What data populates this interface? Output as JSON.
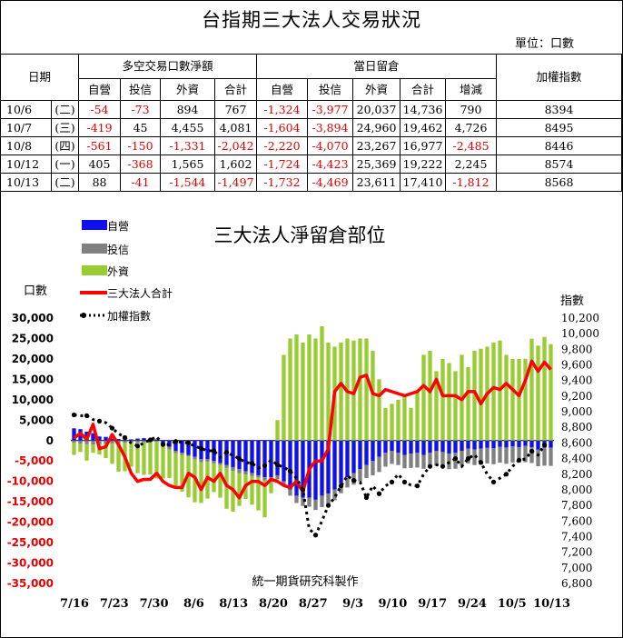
{
  "title": "台指期三大法人交易狀況",
  "unit_label": "單位：口數",
  "table": {
    "date_header": "日期",
    "group1": "多空交易口數淨額",
    "group2": "當日留倉",
    "index_header": "加權指數",
    "sub_headers": [
      "自營",
      "投信",
      "外資",
      "合計",
      "自營",
      "投信",
      "外資",
      "合計",
      "增減"
    ],
    "rows": [
      {
        "date": "10/6",
        "weekday": "(二)",
        "values": [
          "-54",
          "-73",
          "894",
          "767",
          "-1,324",
          "-3,977",
          "20,037",
          "14,736",
          "790"
        ],
        "index": "8394"
      },
      {
        "date": "10/7",
        "weekday": "(三)",
        "values": [
          "-419",
          "45",
          "4,455",
          "4,081",
          "-1,604",
          "-3,894",
          "24,960",
          "19,462",
          "4,726"
        ],
        "index": "8495"
      },
      {
        "date": "10/8",
        "weekday": "(四)",
        "values": [
          "-561",
          "-150",
          "-1,331",
          "-2,042",
          "-2,220",
          "-4,070",
          "23,267",
          "16,977",
          "-2,485"
        ],
        "index": "8446"
      },
      {
        "date": "10/12",
        "weekday": "(一)",
        "values": [
          "405",
          "-368",
          "1,565",
          "1,602",
          "-1,724",
          "-4,423",
          "25,369",
          "19,222",
          "2,245"
        ],
        "index": "8574"
      },
      {
        "date": "10/13",
        "weekday": "(二)",
        "values": [
          "88",
          "-41",
          "-1,544",
          "-1,497",
          "-1,732",
          "-4,469",
          "23,611",
          "17,410",
          "-1,812"
        ],
        "index": "8568"
      }
    ]
  },
  "chart_data": {
    "type": "bar",
    "title": "三大法人淨留倉部位",
    "ylabel": "口數",
    "y2label": "指數",
    "footer": "統一期貨研究科製作",
    "ylim": [
      -35000,
      30000
    ],
    "y2lim": [
      6800,
      10200
    ],
    "yticks": [
      "30,000",
      "25,000",
      "20,000",
      "15,000",
      "10,000",
      "5,000",
      "0",
      "-5,000",
      "-10,000",
      "-15,000",
      "-20,000",
      "-25,000",
      "-30,000",
      "-35,000"
    ],
    "y2ticks": [
      "10,200",
      "10,000",
      "9,800",
      "9,600",
      "9,400",
      "9,200",
      "9,000",
      "8,800",
      "8,600",
      "8,400",
      "8,200",
      "8,000",
      "7,800",
      "7,600",
      "7,400",
      "7,200",
      "7,000",
      "6,800"
    ],
    "xticks": [
      "7/16",
      "7/23",
      "7/30",
      "8/6",
      "8/13",
      "8/20",
      "8/27",
      "9/3",
      "9/10",
      "9/17",
      "9/24",
      "10/5",
      "10/13"
    ],
    "colors": {
      "dealer": "#1010ee",
      "trust": "#808080",
      "foreign": "#99cc33",
      "total": "#ff0000",
      "index": "#000000"
    },
    "series": [
      {
        "name": "自營",
        "key": "dealer",
        "values": [
          3000,
          2800,
          2200,
          1800,
          1000,
          900,
          500,
          400,
          300,
          300,
          500,
          600,
          500,
          300,
          -800,
          -1500,
          -2500,
          -3000,
          -3500,
          -4000,
          -4500,
          -4500,
          -5000,
          -5500,
          -6000,
          -6500,
          -7000,
          -7500,
          -8000,
          -8500,
          -9000,
          -9000,
          -8500,
          -10000,
          -12000,
          -13500,
          -14000,
          -14000,
          -14500,
          -13500,
          -13000,
          -12000,
          -10500,
          -9000,
          -8000,
          -7000,
          -6000,
          -5000,
          -4000,
          -3000,
          -2500,
          -3000,
          -3500,
          -3200,
          -3000,
          -3500,
          -3000,
          -2500,
          -2800,
          -3200,
          -3000,
          -2500,
          -2000,
          -2200,
          -2000,
          -1800,
          -1900,
          -1500,
          -1700,
          -1400,
          -1600,
          -1324,
          -1604,
          -2220,
          -1724,
          -1732
        ]
      },
      {
        "name": "投信",
        "key": "trust",
        "values": [
          -500,
          -800,
          -900,
          -1000,
          -900,
          -800,
          -700,
          -600,
          -500,
          -400,
          -500,
          -400,
          -300,
          -300,
          -500,
          -700,
          -600,
          -500,
          -400,
          -600,
          -800,
          -700,
          -600,
          -500,
          -700,
          -900,
          -1000,
          -800,
          -700,
          -600,
          -800,
          -900,
          -1000,
          -1200,
          -1500,
          -1800,
          -2000,
          -2200,
          -2500,
          -2800,
          -2700,
          -2600,
          -2400,
          -2500,
          -2800,
          -3000,
          -3200,
          -3500,
          -3700,
          -3400,
          -3200,
          -3000,
          -3300,
          -3500,
          -3600,
          -3400,
          -3500,
          -3700,
          -3600,
          -3800,
          -3900,
          -3700,
          -3600,
          -3800,
          -3900,
          -3800,
          -3900,
          -3900,
          -4000,
          -3950,
          -3800,
          -3977,
          -3894,
          -4070,
          -4423,
          -4469
        ]
      },
      {
        "name": "外資",
        "key": "foreign",
        "values": [
          -3000,
          -2000,
          -4000,
          -2000,
          -2500,
          -3500,
          -5000,
          -7000,
          -7000,
          -6000,
          -7500,
          -8000,
          -8000,
          -9000,
          -8000,
          -7000,
          -8000,
          -9000,
          -10000,
          -10500,
          -10000,
          -9000,
          -7000,
          -8000,
          -10000,
          -10000,
          -8000,
          -6000,
          -7000,
          -8000,
          -9000,
          -3000,
          5000,
          21000,
          25000,
          26000,
          24000,
          26000,
          25000,
          28000,
          24000,
          23000,
          24000,
          25000,
          24500,
          25000,
          25000,
          22000,
          15000,
          8000,
          9000,
          10000,
          11000,
          8000,
          12000,
          21000,
          22000,
          17000,
          20000,
          19000,
          17000,
          21000,
          18000,
          22000,
          22500,
          23000,
          24000,
          24500,
          21000,
          20000,
          20000,
          20037,
          24960,
          23267,
          25369,
          23611
        ]
      },
      {
        "name": "三大法人合計",
        "key": "total",
        "values": [
          600,
          1800,
          300,
          4000,
          -2000,
          -1500,
          1500,
          -1000,
          -4000,
          -8000,
          -10000,
          -9500,
          -9500,
          -8000,
          -10000,
          -11000,
          -11500,
          -11500,
          -8000,
          -9000,
          -12000,
          -9000,
          -10000,
          -8000,
          -11000,
          -12000,
          -14000,
          -11000,
          -10000,
          -10000,
          -11000,
          -9500,
          -10000,
          -11000,
          -11500,
          -10000,
          -12500,
          -7000,
          -5000,
          -5000,
          -2000,
          12000,
          14000,
          12000,
          11500,
          15500,
          16000,
          11500,
          11000,
          12500,
          12000,
          11500,
          11000,
          11500,
          12000,
          13500,
          12000,
          15000,
          11000,
          11000,
          11000,
          10000,
          12000,
          12000,
          9000,
          11500,
          13000,
          12500,
          14000,
          12500,
          11000,
          14736,
          19462,
          16977,
          19222,
          17410
        ]
      },
      {
        "name": "加權指數",
        "key": "index",
        "values": [
          8960,
          8950,
          8950,
          8900,
          8880,
          8860,
          8790,
          8720,
          8670,
          8600,
          8560,
          8600,
          8640,
          8680,
          8580,
          8580,
          8620,
          8610,
          8600,
          8560,
          8530,
          8500,
          8500,
          8420,
          8480,
          8440,
          8400,
          8350,
          8340,
          8280,
          8310,
          8380,
          8320,
          8290,
          8240,
          8150,
          8000,
          7500,
          7420,
          7600,
          7800,
          7900,
          8050,
          8180,
          8120,
          8100,
          7900,
          8050,
          7950,
          8050,
          8100,
          8200,
          8100,
          8060,
          8050,
          8200,
          8300,
          8320,
          8300,
          8350,
          8400,
          8300,
          8400,
          8450,
          8350,
          8200,
          8100,
          8150,
          8200,
          8300,
          8380,
          8394,
          8495,
          8446,
          8574,
          8568
        ]
      }
    ]
  }
}
